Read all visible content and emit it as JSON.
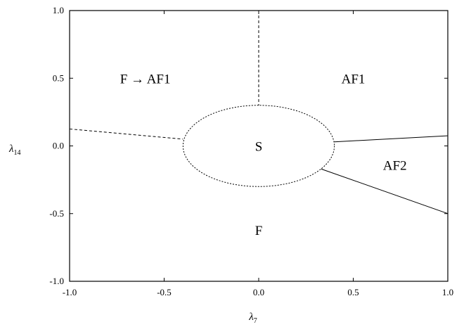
{
  "diagram": {
    "x_axis": {
      "label": "λ",
      "label_subscript": "7",
      "range": [
        -1.0,
        1.0
      ],
      "ticks": [
        {
          "value": -1.0,
          "label": "-1.0"
        },
        {
          "value": -0.5,
          "label": "-0.5"
        },
        {
          "value": 0.0,
          "label": "0.0"
        },
        {
          "value": 0.5,
          "label": "0.5"
        },
        {
          "value": 1.0,
          "label": "1.0"
        }
      ]
    },
    "y_axis": {
      "label": "λ",
      "label_subscript": "14",
      "range": [
        -1.0,
        1.0
      ],
      "ticks": [
        {
          "value": -1.0,
          "label": "-1.0"
        },
        {
          "value": -0.5,
          "label": "-0.5"
        },
        {
          "value": 0.0,
          "label": "0.0"
        },
        {
          "value": 0.5,
          "label": "0.5"
        },
        {
          "value": 1.0,
          "label": "1.0"
        }
      ]
    },
    "regions": [
      {
        "id": "f-to-af1",
        "label": "F → AF1",
        "x": -0.6,
        "y": 0.5
      },
      {
        "id": "af1",
        "label": "AF1",
        "x": 0.5,
        "y": 0.5
      },
      {
        "id": "s",
        "label": "S",
        "x": 0.0,
        "y": 0.0
      },
      {
        "id": "af2",
        "label": "AF2",
        "x": 0.72,
        "y": -0.14
      },
      {
        "id": "f",
        "label": "F",
        "x": 0.0,
        "y": -0.62
      }
    ],
    "boundaries": [
      {
        "id": "vertical-dashed",
        "style": "dashed",
        "points": [
          [
            0.0,
            1.0
          ],
          [
            0.0,
            0.3
          ]
        ]
      },
      {
        "id": "left-dashed",
        "style": "dashed",
        "points": [
          [
            -1.0,
            0.125
          ],
          [
            -0.4,
            0.05
          ]
        ]
      },
      {
        "id": "upper-right-solid",
        "style": "solid",
        "points": [
          [
            0.4,
            0.03
          ],
          [
            1.0,
            0.075
          ]
        ]
      },
      {
        "id": "lower-right-solid",
        "style": "solid",
        "points": [
          [
            0.33,
            -0.17
          ],
          [
            1.0,
            -0.5
          ]
        ]
      }
    ],
    "ellipse": {
      "id": "s-ellipse",
      "style": "dotted",
      "cx": 0.0,
      "cy": 0.0,
      "rx": 0.4,
      "ry": 0.3
    }
  }
}
